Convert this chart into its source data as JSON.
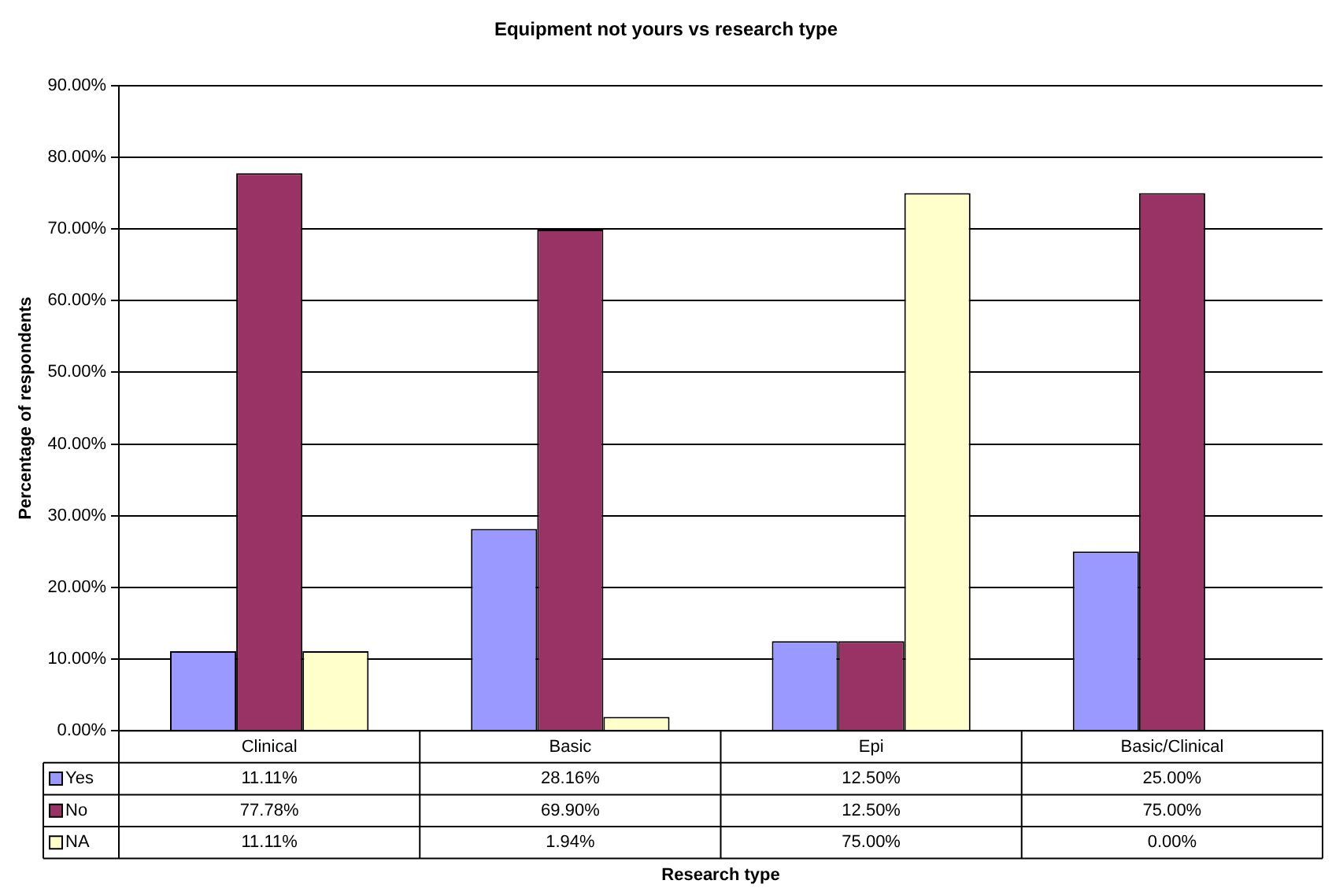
{
  "chart_data": {
    "type": "bar",
    "title": "Equipment not yours vs research type",
    "annotations": [
      "Research type"
    ],
    "ylabel": "Percentage of respondents",
    "categories": [
      "Clinical",
      "Basic",
      "Epi",
      "Basic/Clinical"
    ],
    "series": [
      {
        "name": "Yes",
        "color": "#9999ff",
        "values": [
          11.11,
          28.16,
          12.5,
          25
        ],
        "value_labels": [
          "11.11%",
          "28.16%",
          "12.50%",
          "25.00%"
        ]
      },
      {
        "name": "No",
        "color": "#993366",
        "values": [
          77.78,
          69.9,
          12.5,
          75
        ],
        "value_labels": [
          "77.78%",
          "69.90%",
          "12.50%",
          "75.00%"
        ]
      },
      {
        "name": "NA",
        "color": "#ffffcc",
        "values": [
          11.11,
          1.94,
          75,
          0
        ],
        "value_labels": [
          "11.11%",
          "1.94%",
          "75.00%",
          "0.00%"
        ]
      }
    ],
    "ylim": [
      0,
      90
    ],
    "yticks": [
      {
        "value": 0,
        "label": "0.00%"
      },
      {
        "value": 10,
        "label": "10.00%"
      },
      {
        "value": 20,
        "label": "20.00%"
      },
      {
        "value": 30,
        "label": "30.00%"
      },
      {
        "value": 40,
        "label": "40.00%"
      },
      {
        "value": 50,
        "label": "50.00%"
      },
      {
        "value": 60,
        "label": "60.00%"
      },
      {
        "value": 70,
        "label": "70.00%"
      },
      {
        "value": 80,
        "label": "80.00%"
      },
      {
        "value": 90,
        "label": "90.00%"
      }
    ],
    "grid": "y",
    "legend": "bottom"
  }
}
